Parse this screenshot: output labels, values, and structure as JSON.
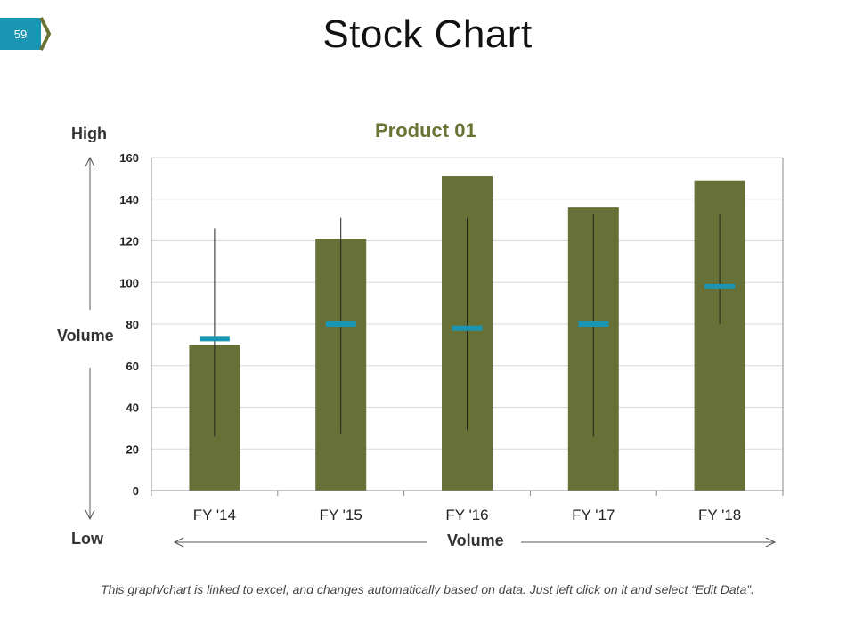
{
  "slide": {
    "number": "59",
    "title": "Stock Chart",
    "footnote": "This graph/chart is linked to excel, and changes automatically based on data. Just left click on it and select “Edit Data”."
  },
  "labels": {
    "high": "High",
    "low": "Low",
    "volume_vertical": "Volume",
    "volume_horizontal": "Volume"
  },
  "colors": {
    "bar": "#677137",
    "close": "#1a96b4",
    "title": "#6b7334"
  },
  "chart_data": {
    "type": "bar",
    "title": "Product 01",
    "categories": [
      "FY '14",
      "FY '15",
      "FY '16",
      "FY '17",
      "FY '18"
    ],
    "series": [
      {
        "name": "Volume",
        "values": [
          70,
          121,
          151,
          136,
          149
        ]
      },
      {
        "name": "High",
        "values": [
          126,
          131,
          131,
          133,
          133
        ]
      },
      {
        "name": "Low",
        "values": [
          26,
          27,
          29,
          26,
          80
        ]
      },
      {
        "name": "Close",
        "values": [
          73,
          80,
          78,
          80,
          98
        ]
      }
    ],
    "ylim": [
      0,
      160
    ],
    "yticks": [
      0,
      20,
      40,
      60,
      80,
      100,
      120,
      140,
      160
    ],
    "grid": true,
    "legend": "none"
  }
}
